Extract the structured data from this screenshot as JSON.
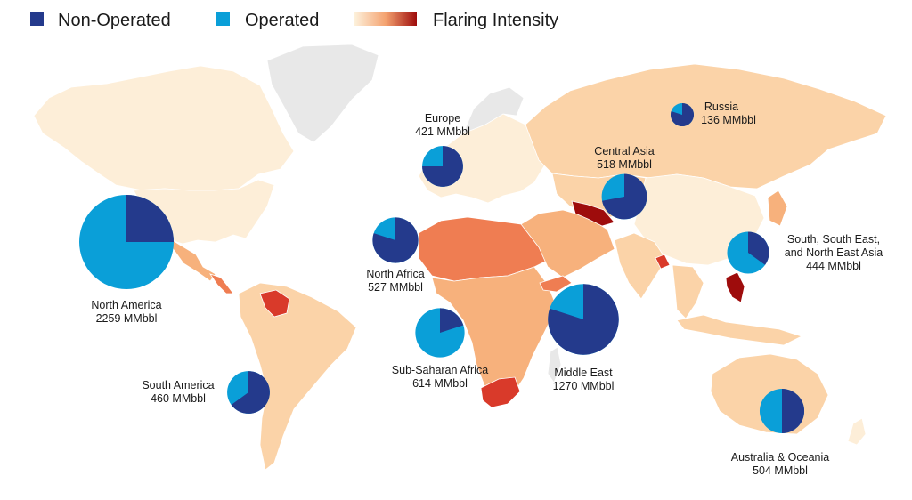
{
  "legend": {
    "non_operated": {
      "label": "Non-Operated",
      "color": "#243a8c"
    },
    "operated": {
      "label": "Operated",
      "color": "#0a9fd8"
    },
    "intensity": {
      "label": "Flaring Intensity",
      "low_color": "#fdf1dc",
      "mid_color": "#f4a26f",
      "high_color": "#9e0c0c"
    }
  },
  "map_colors": {
    "no_data": "#e8e8e8",
    "very_low": "#fdeed8",
    "low": "#fbd3a8",
    "medium": "#f7b17c",
    "high": "#ef7d52",
    "very_high": "#d93a2a",
    "extreme": "#9e0c0c"
  },
  "regions": [
    {
      "name": "North America",
      "line1": "North America",
      "line2": "2259 MMbbl",
      "total": 2259,
      "non_operated_share": 0.25
    },
    {
      "name": "South America",
      "line1": "South America",
      "line2": "460 MMbbl",
      "total": 460,
      "non_operated_share": 0.65
    },
    {
      "name": "Europe",
      "line1": "Europe",
      "line2": "421 MMbbl",
      "total": 421,
      "non_operated_share": 0.75
    },
    {
      "name": "North Africa",
      "line1": "North Africa",
      "line2": "527 MMbbl",
      "total": 527,
      "non_operated_share": 0.8
    },
    {
      "name": "Sub-Saharan Africa",
      "line1": "Sub-Saharan Africa",
      "line2": "614 MMbbl",
      "total": 614,
      "non_operated_share": 0.2
    },
    {
      "name": "Middle East",
      "line1": "Middle East",
      "line2": "1270 MMbbl",
      "total": 1270,
      "non_operated_share": 0.8
    },
    {
      "name": "Central Asia",
      "line1": "Central Asia",
      "line2": "518 MMbbl",
      "total": 518,
      "non_operated_share": 0.72
    },
    {
      "name": "Russia",
      "line1": "Russia",
      "line2": "136 MMbbl",
      "total": 136,
      "non_operated_share": 0.8
    },
    {
      "name": "South, South East, and North East Asia",
      "line1": "South, South East,",
      "line2": "and North East Asia",
      "line3": "444 MMbbl",
      "total": 444,
      "non_operated_share": 0.35
    },
    {
      "name": "Australia & Oceania",
      "line1": "Australia & Oceania",
      "line2": "504 MMbbl",
      "total": 504,
      "non_operated_share": 0.5
    }
  ]
}
